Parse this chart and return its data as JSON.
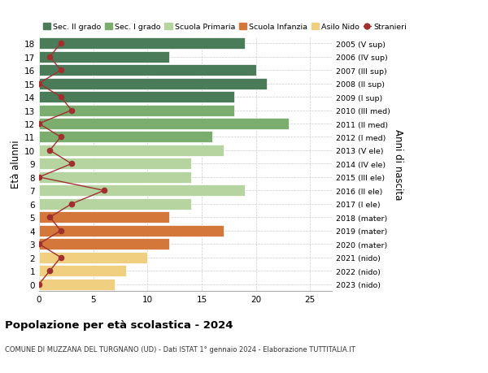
{
  "ages": [
    18,
    17,
    16,
    15,
    14,
    13,
    12,
    11,
    10,
    9,
    8,
    7,
    6,
    5,
    4,
    3,
    2,
    1,
    0
  ],
  "years": [
    "2005 (V sup)",
    "2006 (IV sup)",
    "2007 (III sup)",
    "2008 (II sup)",
    "2009 (I sup)",
    "2010 (III med)",
    "2011 (II med)",
    "2012 (I med)",
    "2013 (V ele)",
    "2014 (IV ele)",
    "2015 (III ele)",
    "2016 (II ele)",
    "2017 (I ele)",
    "2018 (mater)",
    "2019 (mater)",
    "2020 (mater)",
    "2021 (nido)",
    "2022 (nido)",
    "2023 (nido)"
  ],
  "bar_values": [
    19,
    12,
    20,
    21,
    18,
    18,
    23,
    16,
    17,
    14,
    14,
    19,
    14,
    12,
    17,
    12,
    10,
    8,
    7
  ],
  "bar_colors": [
    "#4a7c59",
    "#4a7c59",
    "#4a7c59",
    "#4a7c59",
    "#4a7c59",
    "#7aad6e",
    "#7aad6e",
    "#7aad6e",
    "#b5d4a0",
    "#b5d4a0",
    "#b5d4a0",
    "#b5d4a0",
    "#b5d4a0",
    "#d4773a",
    "#d4773a",
    "#d4773a",
    "#f0d080",
    "#f0d080",
    "#f0d080"
  ],
  "stranieri_values": [
    2,
    1,
    2,
    0,
    2,
    3,
    0,
    2,
    1,
    3,
    0,
    6,
    3,
    1,
    2,
    0,
    2,
    1,
    0
  ],
  "legend_labels": [
    "Sec. II grado",
    "Sec. I grado",
    "Scuola Primaria",
    "Scuola Infanzia",
    "Asilo Nido",
    "Stranieri"
  ],
  "legend_colors": [
    "#4a7c59",
    "#7aad6e",
    "#b5d4a0",
    "#d4773a",
    "#f0d080",
    "#a03030"
  ],
  "title": "Popolazione per età scolastica - 2024",
  "subtitle": "COMUNE DI MUZZANA DEL TURGNANO (UD) - Dati ISTAT 1° gennaio 2024 - Elaborazione TUTTITALIA.IT",
  "ylabel_left": "Età alunni",
  "ylabel_right": "Anni di nascita",
  "xlim": [
    0,
    27
  ],
  "xlabel_ticks": [
    0,
    5,
    10,
    15,
    20,
    25
  ],
  "background_color": "#ffffff",
  "grid_color": "#cccccc",
  "stranieri_color": "#a03030"
}
